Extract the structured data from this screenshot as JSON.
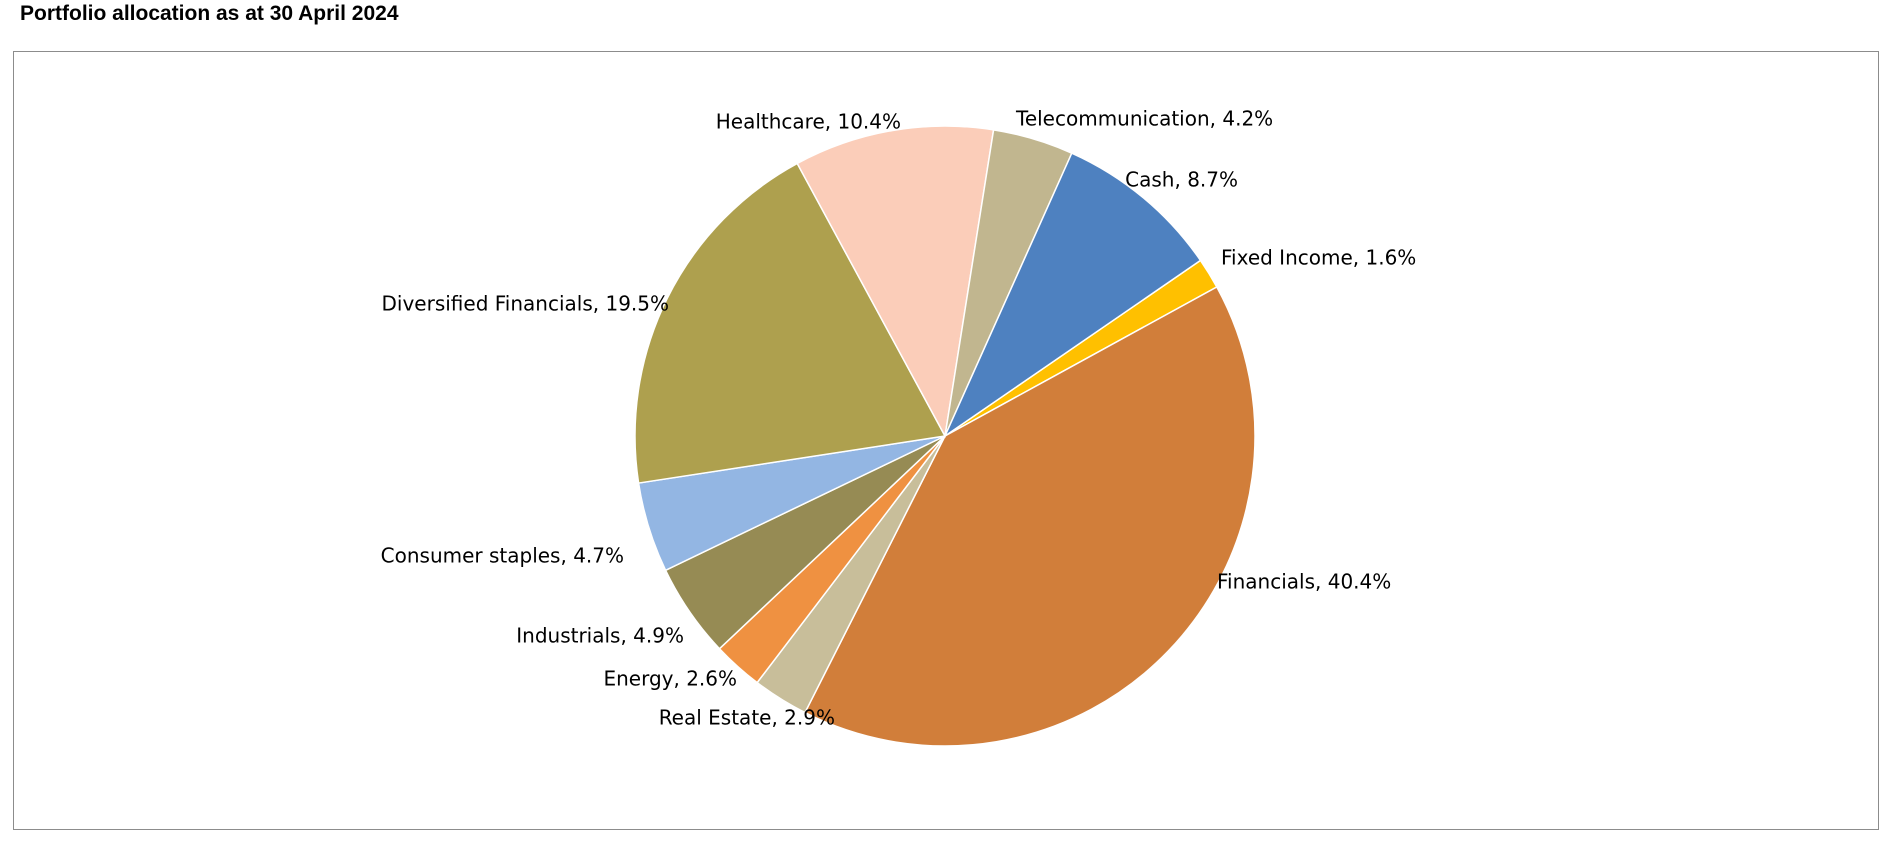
{
  "page": {
    "title": "Portfolio allocation as at 30 April 2024"
  },
  "chart_data": {
    "type": "pie",
    "title": "Portfolio allocation as at 30 April 2024",
    "start_category": "Fixed Income",
    "direction": "clockwise",
    "legend": "none",
    "categories": [
      "Fixed Income",
      "Financials",
      "Real Estate",
      "Energy",
      "Industrials",
      "Consumer staples",
      "Diversified Financials",
      "Healthcare",
      "Telecommunication",
      "Cash"
    ],
    "values": [
      1.6,
      40.4,
      2.9,
      2.6,
      4.9,
      4.7,
      19.5,
      10.4,
      4.2,
      8.7
    ],
    "value_suffix": "%",
    "colors": [
      "#FFC000",
      "#D17E3A",
      "#C8BE9A",
      "#EF9141",
      "#968B54",
      "#93B6E3",
      "#AEA04E",
      "#FBCDB9",
      "#C1B68F",
      "#4E81C0"
    ],
    "data_labels": [
      {
        "text": "Fixed Income, 1.6%",
        "anchor": "start"
      },
      {
        "text": "Financials, 40.4%",
        "anchor": "start"
      },
      {
        "text": "Real Estate, 2.9%",
        "anchor": "end"
      },
      {
        "text": "Energy, 2.6%",
        "anchor": "end"
      },
      {
        "text": "Industrials, 4.9%",
        "anchor": "end"
      },
      {
        "text": "Consumer staples, 4.7%",
        "anchor": "end"
      },
      {
        "text": "Diversified Financials, 19.5%",
        "anchor": "end"
      },
      {
        "text": "Healthcare, 10.4%",
        "anchor": "end"
      },
      {
        "text": "Telecommunication, 4.2%",
        "anchor": "start"
      },
      {
        "text": "Cash, 8.7%",
        "anchor": "end"
      }
    ]
  }
}
